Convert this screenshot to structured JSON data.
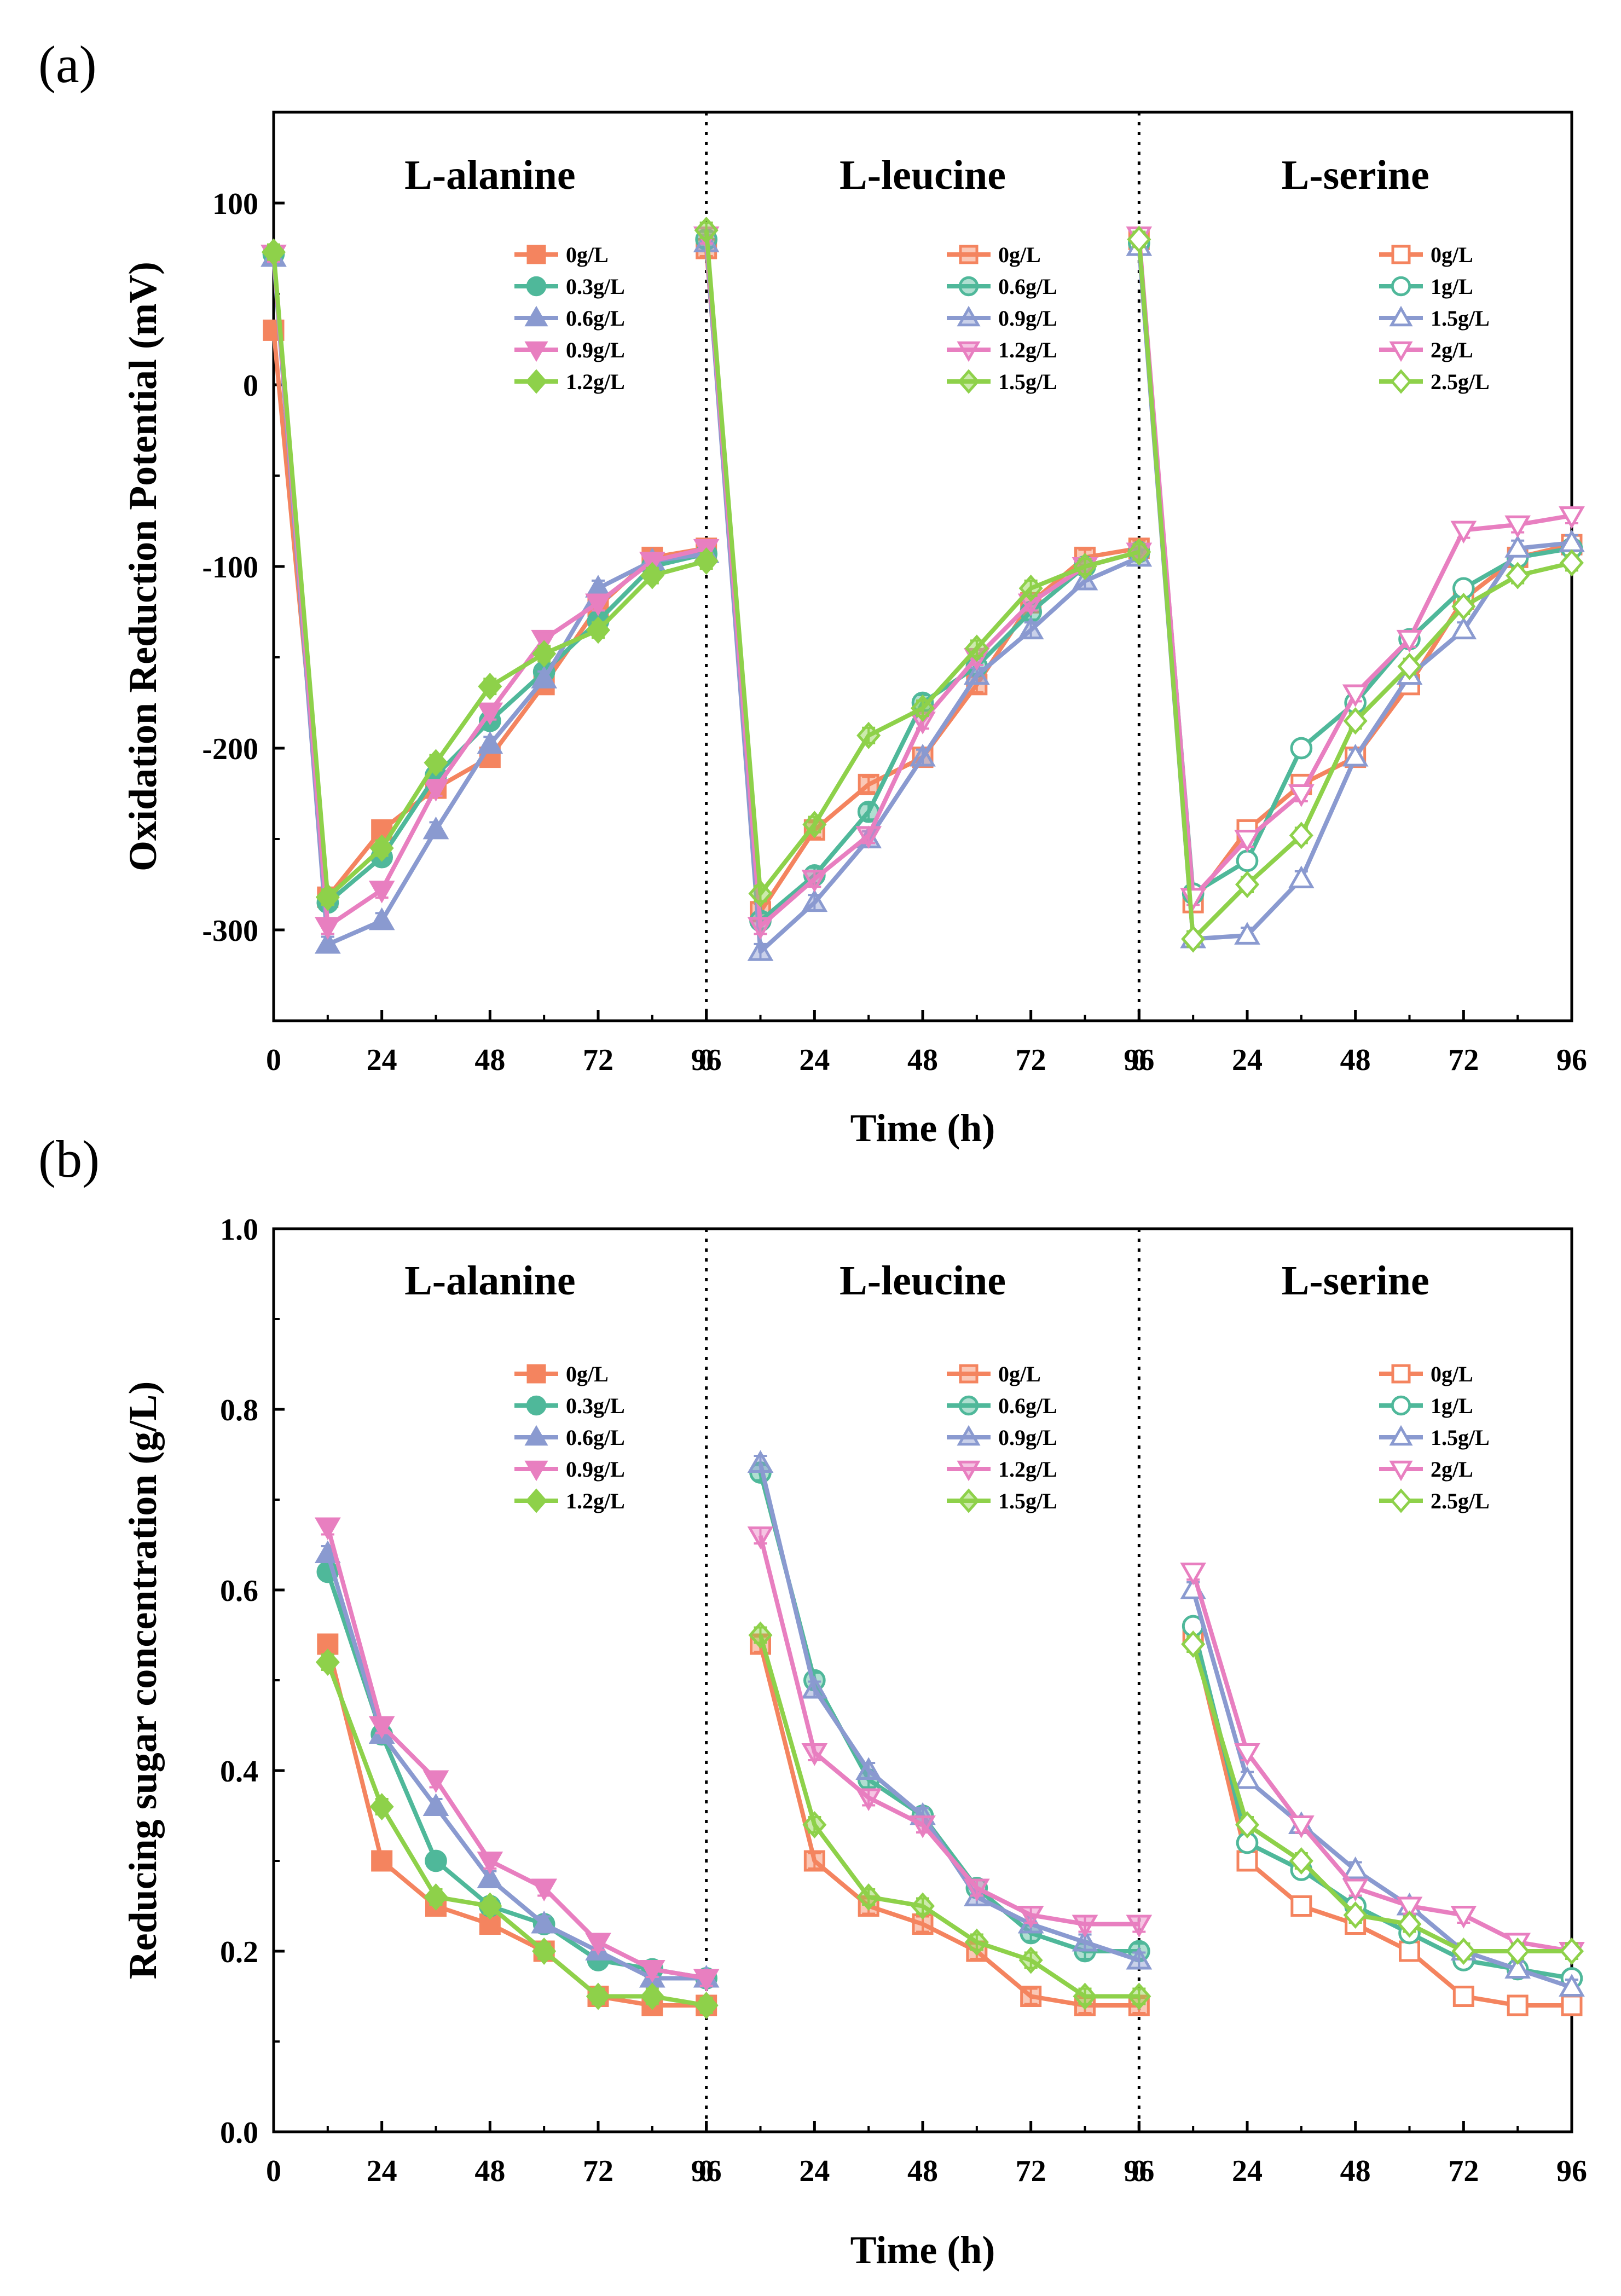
{
  "chart_data": [
    {
      "panel": "(a)",
      "type": "line",
      "ylabel": "Oxidation Reduction Potential (mV)",
      "xlabel": "Time (h)",
      "ylim": [
        -350,
        150
      ],
      "yticks": [
        100,
        0,
        -100,
        -200,
        -300
      ],
      "xticks": [
        "0",
        "24",
        "48",
        "72",
        "96"
      ],
      "x": [
        0,
        12,
        24,
        36,
        48,
        60,
        72,
        84,
        96
      ],
      "groups": [
        {
          "title": "L-alanine",
          "marker_fill": "filled",
          "series": [
            {
              "name": "0g/L",
              "color": "#f4845f",
              "marker": "square",
              "values": [
                30,
                -282,
                -245,
                -222,
                -205,
                -165,
                -122,
                -95,
                -90
              ]
            },
            {
              "name": "0.3g/L",
              "color": "#4fb89a",
              "marker": "circle",
              "values": [
                72,
                -285,
                -260,
                -215,
                -185,
                -158,
                -130,
                -100,
                -93
              ]
            },
            {
              "name": "0.6g/L",
              "color": "#8a9ad0",
              "marker": "triangle-up",
              "values": [
                70,
                -308,
                -295,
                -245,
                -198,
                -162,
                -112,
                -97,
                -93
              ]
            },
            {
              "name": "0.9g/L",
              "color": "#e87fc0",
              "marker": "triangle-down",
              "values": [
                72,
                -298,
                -278,
                -222,
                -180,
                -140,
                -120,
                -97,
                -90
              ]
            },
            {
              "name": "1.2g/L",
              "color": "#8ed14a",
              "marker": "diamond",
              "values": [
                73,
                -282,
                -255,
                -208,
                -166,
                -148,
                -135,
                -105,
                -97
              ]
            }
          ]
        },
        {
          "title": "L-leucine",
          "marker_fill": "half",
          "series": [
            {
              "name": "0g/L",
              "color": "#f4845f",
              "marker": "square",
              "values": [
                75,
                -290,
                -245,
                -220,
                -205,
                -165,
                -120,
                -95,
                -90
              ]
            },
            {
              "name": "0.6g/L",
              "color": "#4fb89a",
              "marker": "circle",
              "values": [
                80,
                -295,
                -270,
                -235,
                -175,
                -155,
                -125,
                -100,
                -92
              ]
            },
            {
              "name": "0.9g/L",
              "color": "#8a9ad0",
              "marker": "triangle-up",
              "values": [
                78,
                -312,
                -285,
                -250,
                -205,
                -160,
                -135,
                -108,
                -95
              ]
            },
            {
              "name": "1.2g/L",
              "color": "#e87fc0",
              "marker": "triangle-down",
              "values": [
                82,
                -298,
                -272,
                -248,
                -185,
                -150,
                -120,
                -100,
                -92
              ]
            },
            {
              "name": "1.5g/L",
              "color": "#8ed14a",
              "marker": "diamond",
              "values": [
                85,
                -280,
                -242,
                -193,
                -178,
                -145,
                -112,
                -100,
                -92
              ]
            }
          ]
        },
        {
          "title": "L-serine",
          "marker_fill": "open",
          "series": [
            {
              "name": "0g/L",
              "color": "#f4845f",
              "marker": "square",
              "values": [
                80,
                -285,
                -245,
                -220,
                -205,
                -165,
                -118,
                -95,
                -88
              ]
            },
            {
              "name": "1g/L",
              "color": "#4fb89a",
              "marker": "circle",
              "values": [
                78,
                -280,
                -262,
                -200,
                -175,
                -140,
                -112,
                -95,
                -90
              ]
            },
            {
              "name": "1.5g/L",
              "color": "#8a9ad0",
              "marker": "triangle-up",
              "values": [
                76,
                -305,
                -303,
                -272,
                -205,
                -160,
                -135,
                -90,
                -87
              ]
            },
            {
              "name": "2g/L",
              "color": "#e87fc0",
              "marker": "triangle-down",
              "values": [
                82,
                -282,
                -250,
                -225,
                -170,
                -140,
                -80,
                -77,
                -72
              ]
            },
            {
              "name": "2.5g/L",
              "color": "#8ed14a",
              "marker": "diamond",
              "values": [
                80,
                -305,
                -275,
                -248,
                -185,
                -155,
                -122,
                -105,
                -98
              ]
            }
          ]
        }
      ]
    },
    {
      "panel": "(b)",
      "type": "line",
      "ylabel": "Reducing sugar concentration (g/L)",
      "xlabel": "Time (h)",
      "ylim": [
        0.0,
        1.0
      ],
      "yticks": [
        "1.0",
        "0.8",
        "0.6",
        "0.4",
        "0.2",
        "0.0"
      ],
      "xticks": [
        "0",
        "24",
        "48",
        "72",
        "96"
      ],
      "x": [
        12,
        24,
        36,
        48,
        60,
        72,
        84,
        96
      ],
      "groups": [
        {
          "title": "L-alanine",
          "marker_fill": "filled",
          "series": [
            {
              "name": "0g/L",
              "color": "#f4845f",
              "marker": "square",
              "values": [
                0.54,
                0.3,
                0.25,
                0.23,
                0.2,
                0.15,
                0.14,
                0.14
              ]
            },
            {
              "name": "0.3g/L",
              "color": "#4fb89a",
              "marker": "circle",
              "values": [
                0.62,
                0.44,
                0.3,
                0.25,
                0.23,
                0.19,
                0.18,
                0.17
              ]
            },
            {
              "name": "0.6g/L",
              "color": "#8a9ad0",
              "marker": "triangle-up",
              "values": [
                0.64,
                0.44,
                0.36,
                0.28,
                0.23,
                0.2,
                0.17,
                0.17
              ]
            },
            {
              "name": "0.9g/L",
              "color": "#e87fc0",
              "marker": "triangle-down",
              "values": [
                0.67,
                0.45,
                0.39,
                0.3,
                0.27,
                0.21,
                0.18,
                0.17
              ]
            },
            {
              "name": "1.2g/L",
              "color": "#8ed14a",
              "marker": "diamond",
              "values": [
                0.52,
                0.36,
                0.26,
                0.25,
                0.2,
                0.15,
                0.15,
                0.14
              ]
            }
          ]
        },
        {
          "title": "L-leucine",
          "marker_fill": "half",
          "series": [
            {
              "name": "0g/L",
              "color": "#f4845f",
              "marker": "square",
              "values": [
                0.54,
                0.3,
                0.25,
                0.23,
                0.2,
                0.15,
                0.14,
                0.14
              ]
            },
            {
              "name": "0.6g/L",
              "color": "#4fb89a",
              "marker": "circle",
              "values": [
                0.73,
                0.5,
                0.39,
                0.35,
                0.27,
                0.22,
                0.2,
                0.2
              ]
            },
            {
              "name": "0.9g/L",
              "color": "#8a9ad0",
              "marker": "triangle-up",
              "values": [
                0.74,
                0.49,
                0.4,
                0.35,
                0.26,
                0.23,
                0.21,
                0.19
              ]
            },
            {
              "name": "1.2g/L",
              "color": "#e87fc0",
              "marker": "triangle-down",
              "values": [
                0.66,
                0.42,
                0.37,
                0.34,
                0.27,
                0.24,
                0.23,
                0.23
              ]
            },
            {
              "name": "1.5g/L",
              "color": "#8ed14a",
              "marker": "diamond",
              "values": [
                0.55,
                0.34,
                0.26,
                0.25,
                0.21,
                0.19,
                0.15,
                0.15
              ]
            }
          ]
        },
        {
          "title": "L-serine",
          "marker_fill": "open",
          "series": [
            {
              "name": "0g/L",
              "color": "#f4845f",
              "marker": "square",
              "values": [
                0.55,
                0.3,
                0.25,
                0.23,
                0.2,
                0.15,
                0.14,
                0.14
              ]
            },
            {
              "name": "1g/L",
              "color": "#4fb89a",
              "marker": "circle",
              "values": [
                0.56,
                0.32,
                0.29,
                0.25,
                0.22,
                0.19,
                0.18,
                0.17
              ]
            },
            {
              "name": "1.5g/L",
              "color": "#8a9ad0",
              "marker": "triangle-up",
              "values": [
                0.6,
                0.39,
                0.34,
                0.29,
                0.25,
                0.2,
                0.18,
                0.16
              ]
            },
            {
              "name": "2g/L",
              "color": "#e87fc0",
              "marker": "triangle-down",
              "values": [
                0.62,
                0.42,
                0.34,
                0.27,
                0.25,
                0.24,
                0.21,
                0.2
              ]
            },
            {
              "name": "2.5g/L",
              "color": "#8ed14a",
              "marker": "diamond",
              "values": [
                0.54,
                0.34,
                0.3,
                0.24,
                0.23,
                0.2,
                0.2,
                0.2
              ]
            }
          ]
        }
      ]
    }
  ]
}
